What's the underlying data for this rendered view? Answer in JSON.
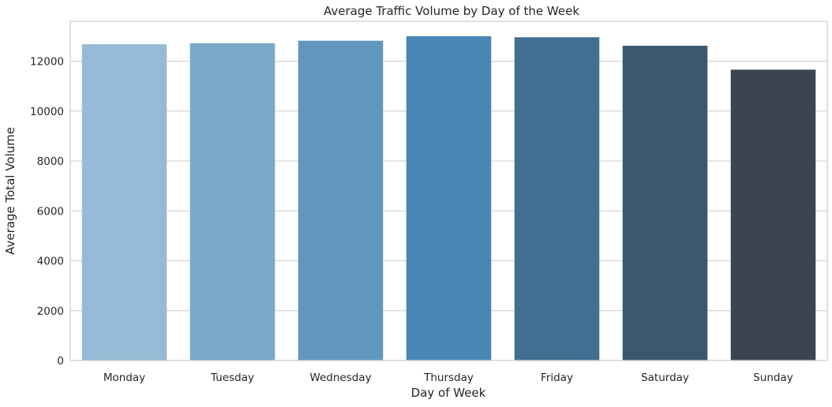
{
  "chart_data": {
    "type": "bar",
    "title": "Average Traffic Volume by Day of the Week",
    "xlabel": "Day of Week",
    "ylabel": "Average Total Volume",
    "categories": [
      "Monday",
      "Tuesday",
      "Wednesday",
      "Thursday",
      "Friday",
      "Saturday",
      "Sunday"
    ],
    "values": [
      12680,
      12720,
      12820,
      13000,
      12960,
      12620,
      11660
    ],
    "colors": [
      "#97bbd6",
      "#7aa8c9",
      "#6197bd",
      "#4786b5",
      "#416f92",
      "#3b586f",
      "#3a4550"
    ],
    "ylim": [
      0,
      13600
    ],
    "yticks": [
      0,
      2000,
      4000,
      6000,
      8000,
      10000,
      12000
    ],
    "grid": "horizontal"
  }
}
